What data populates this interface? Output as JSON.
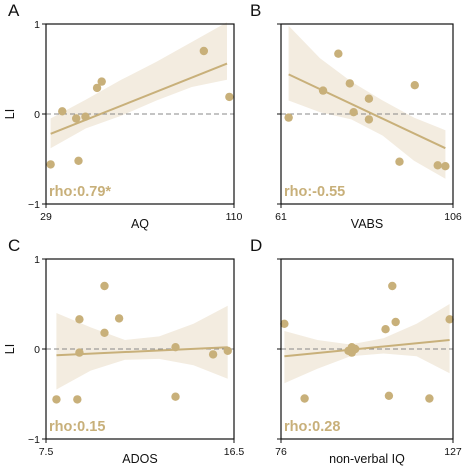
{
  "colors": {
    "accent": "#c8b07a",
    "band": "#f3ece0",
    "zero_line": "#888888",
    "axis": "#111111"
  },
  "chart_data": [
    {
      "type": "scatter",
      "panel": "A",
      "xlabel": "AQ",
      "ylabel": "LI",
      "xlim": [
        29,
        110
      ],
      "ylim": [
        -1,
        1
      ],
      "x_tick_labels": [
        "29",
        "110"
      ],
      "y_tick_labels": [
        "1",
        "0",
        "−1"
      ],
      "annotation": "rho:0.79*",
      "points": [
        [
          31,
          -0.56
        ],
        [
          36,
          0.03
        ],
        [
          42,
          -0.05
        ],
        [
          43,
          -0.52
        ],
        [
          46,
          -0.03
        ],
        [
          51,
          0.29
        ],
        [
          53,
          0.36
        ],
        [
          97,
          0.7
        ],
        [
          108,
          0.19
        ]
      ],
      "fit": {
        "x": [
          31,
          107
        ],
        "y": [
          -0.22,
          0.56
        ]
      },
      "band": {
        "upper": [
          -0.05,
          0.16,
          0.38,
          0.58,
          0.8,
          1.02
        ],
        "lower": [
          -0.38,
          -0.16,
          -0.02,
          0.15,
          0.3,
          0.38
        ]
      }
    },
    {
      "type": "scatter",
      "panel": "B",
      "xlabel": "VABS",
      "ylabel": "",
      "xlim": [
        61,
        106
      ],
      "ylim": [
        -1,
        1
      ],
      "x_tick_labels": [
        "61",
        "106"
      ],
      "y_tick_labels": [],
      "annotation": "rho:-0.55",
      "points": [
        [
          63,
          -0.04
        ],
        [
          72,
          0.26
        ],
        [
          76,
          0.67
        ],
        [
          79,
          0.34
        ],
        [
          80,
          0.02
        ],
        [
          84,
          -0.06
        ],
        [
          84,
          0.17
        ],
        [
          92,
          -0.53
        ],
        [
          96,
          0.32
        ],
        [
          102,
          -0.57
        ],
        [
          104,
          -0.58
        ]
      ],
      "fit": {
        "x": [
          63,
          104
        ],
        "y": [
          0.44,
          -0.38
        ]
      },
      "band": {
        "upper": [
          0.98,
          0.62,
          0.36,
          0.15,
          -0.04,
          -0.18
        ],
        "lower": [
          0.15,
          0.02,
          -0.06,
          -0.24,
          -0.52,
          -0.72
        ]
      }
    },
    {
      "type": "scatter",
      "panel": "C",
      "xlabel": "ADOS",
      "ylabel": "LI",
      "xlim": [
        7.5,
        16.5
      ],
      "ylim": [
        -1,
        1
      ],
      "x_tick_labels": [
        "7.5",
        "16.5"
      ],
      "y_tick_labels": [
        "1",
        "0",
        "−1"
      ],
      "annotation": "rho:0.15",
      "points": [
        [
          8.0,
          -0.56
        ],
        [
          9.0,
          -0.56
        ],
        [
          9.1,
          0.33
        ],
        [
          9.1,
          -0.04
        ],
        [
          10.3,
          0.7
        ],
        [
          10.3,
          0.18
        ],
        [
          11.0,
          0.34
        ],
        [
          13.7,
          0.02
        ],
        [
          13.7,
          -0.53
        ],
        [
          15.5,
          -0.06
        ],
        [
          16.2,
          -0.02
        ]
      ],
      "fit": {
        "x": [
          8.0,
          16.2
        ],
        "y": [
          -0.07,
          0.02
        ]
      },
      "band": {
        "upper": [
          0.4,
          0.24,
          0.1,
          0.14,
          0.28,
          0.48
        ],
        "lower": [
          -0.45,
          -0.24,
          -0.12,
          -0.11,
          -0.18,
          -0.33
        ]
      }
    },
    {
      "type": "scatter",
      "panel": "D",
      "xlabel": "non-verbal IQ",
      "ylabel": "",
      "xlim": [
        76,
        127
      ],
      "ylim": [
        -1,
        1
      ],
      "x_tick_labels": [
        "76",
        "127"
      ],
      "y_tick_labels": [],
      "annotation": "rho:0.28",
      "points": [
        [
          77,
          0.28
        ],
        [
          83,
          -0.55
        ],
        [
          96,
          -0.02
        ],
        [
          97,
          0.02
        ],
        [
          97,
          -0.04
        ],
        [
          98,
          0.0
        ],
        [
          107,
          0.22
        ],
        [
          108,
          -0.52
        ],
        [
          109,
          0.7
        ],
        [
          110,
          0.3
        ],
        [
          120,
          -0.55
        ],
        [
          126,
          0.33
        ]
      ],
      "fit": {
        "x": [
          77,
          126
        ],
        "y": [
          -0.08,
          0.1
        ]
      },
      "band": {
        "upper": [
          0.2,
          0.1,
          0.05,
          0.12,
          0.28,
          0.5
        ],
        "lower": [
          -0.38,
          -0.22,
          -0.08,
          -0.05,
          -0.08,
          -0.27
        ]
      }
    }
  ]
}
